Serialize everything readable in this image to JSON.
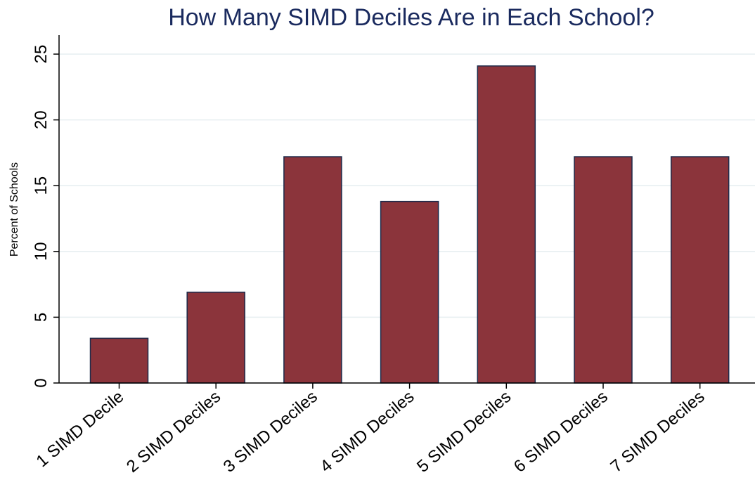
{
  "chart_data": {
    "type": "bar",
    "title": "How Many SIMD Deciles Are in Each School?",
    "xlabel": "",
    "ylabel": "Percent of Schools",
    "categories": [
      "1 SIMD Decile",
      "2 SIMD Deciles",
      "3 SIMD Deciles",
      "4 SIMD Deciles",
      "5 SIMD Deciles",
      "6 SIMD Deciles",
      "7 SIMD Deciles"
    ],
    "values": [
      3.4,
      6.9,
      17.2,
      13.8,
      24.1,
      17.2,
      17.2
    ],
    "ylim": [
      0,
      25
    ],
    "yticks": [
      0,
      5,
      10,
      15,
      20,
      25
    ],
    "grid": true,
    "legend": "none",
    "colors": {
      "bar_fill": "#8b343b",
      "bar_edge": "#1c2a4a",
      "grid": "#e6eef0",
      "axis": "#000000",
      "title": "#1a2a5e"
    }
  }
}
